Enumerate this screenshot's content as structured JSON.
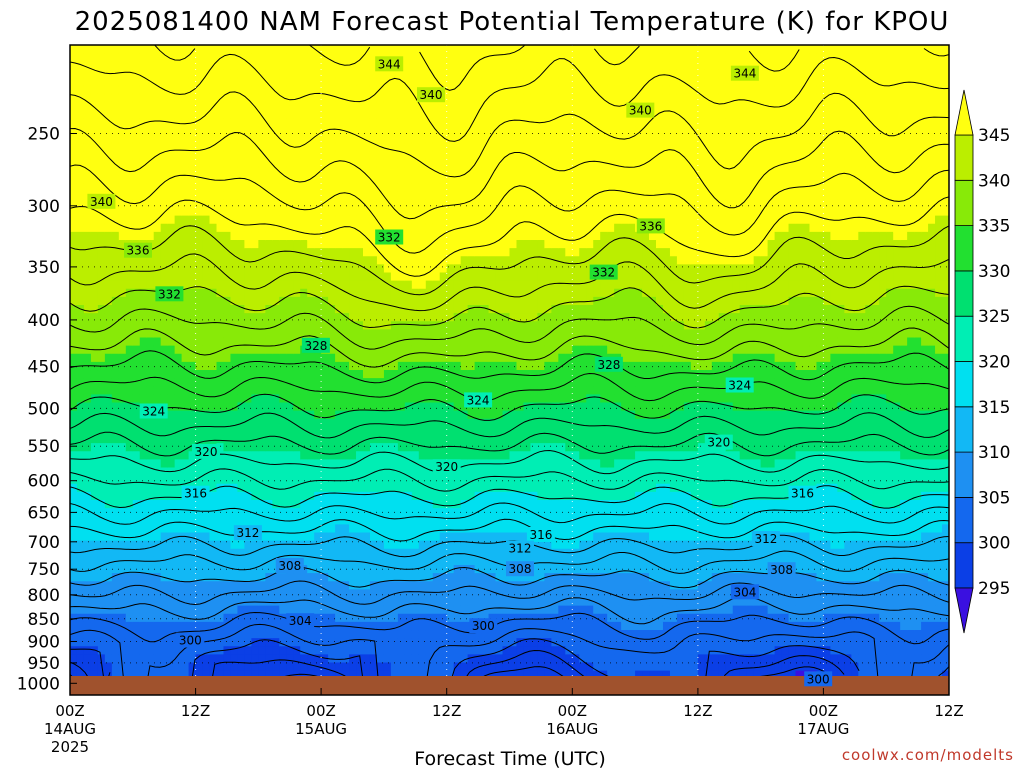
{
  "title": "2025081400 NAM Forecast Potential Temperature (K) for KPOU",
  "credit": "coolwx.com/modelts",
  "chart_data": {
    "type": "heatmap",
    "title": "2025081400 NAM Forecast Potential Temperature (K) for KPOU",
    "xlabel": "Forecast Time (UTC)",
    "ylabel": "",
    "y_axis": {
      "scale": "log-pressure",
      "direction": "inverted",
      "ticks": [
        250,
        300,
        350,
        400,
        450,
        500,
        550,
        600,
        650,
        700,
        750,
        800,
        850,
        900,
        950,
        1000
      ],
      "range": [
        200,
        1030
      ]
    },
    "x_axis": {
      "range_hours": [
        0,
        84
      ],
      "ticks": [
        {
          "hour": 0,
          "line1": "00Z",
          "line2": "14AUG",
          "line3": "2025"
        },
        {
          "hour": 12,
          "line1": "12Z",
          "line2": "",
          "line3": ""
        },
        {
          "hour": 24,
          "line1": "00Z",
          "line2": "15AUG",
          "line3": ""
        },
        {
          "hour": 36,
          "line1": "12Z",
          "line2": "",
          "line3": ""
        },
        {
          "hour": 48,
          "line1": "00Z",
          "line2": "16AUG",
          "line3": ""
        },
        {
          "hour": 60,
          "line1": "12Z",
          "line2": "",
          "line3": ""
        },
        {
          "hour": 72,
          "line1": "00Z",
          "line2": "17AUG",
          "line3": ""
        },
        {
          "hour": 84,
          "line1": "12Z",
          "line2": "",
          "line3": ""
        }
      ]
    },
    "grid": "dotted",
    "colorbar": {
      "levels": [
        295,
        300,
        305,
        310,
        315,
        320,
        325,
        330,
        335,
        340,
        345
      ],
      "colors": [
        "#3a10e0",
        "#0b3fe6",
        "#1468ee",
        "#1e90f2",
        "#12b8f5",
        "#00e0f0",
        "#00eeb4",
        "#00e070",
        "#22e030",
        "#88ea08",
        "#bbee00",
        "#ffff10"
      ],
      "extend": "both"
    },
    "contour_interval_K": 2,
    "contour_labels": [
      {
        "value": "344",
        "hour": 30.5,
        "p": 210
      },
      {
        "value": "344",
        "hour": 64.5,
        "p": 215
      },
      {
        "value": "340",
        "hour": 34.5,
        "p": 227
      },
      {
        "value": "340",
        "hour": 54.5,
        "p": 236
      },
      {
        "value": "340",
        "hour": 3.0,
        "p": 297
      },
      {
        "value": "336",
        "hour": 55.5,
        "p": 316
      },
      {
        "value": "336",
        "hour": 6.5,
        "p": 336
      },
      {
        "value": "332",
        "hour": 30.5,
        "p": 325
      },
      {
        "value": "332",
        "hour": 51.0,
        "p": 355
      },
      {
        "value": "332",
        "hour": 9.5,
        "p": 375
      },
      {
        "value": "328",
        "hour": 23.5,
        "p": 427
      },
      {
        "value": "328",
        "hour": 51.5,
        "p": 448
      },
      {
        "value": "324",
        "hour": 64.0,
        "p": 472
      },
      {
        "value": "324",
        "hour": 39.0,
        "p": 490
      },
      {
        "value": "324",
        "hour": 8.0,
        "p": 504
      },
      {
        "value": "320",
        "hour": 62.0,
        "p": 545
      },
      {
        "value": "320",
        "hour": 13.0,
        "p": 558
      },
      {
        "value": "320",
        "hour": 36.0,
        "p": 580
      },
      {
        "value": "316",
        "hour": 12.0,
        "p": 620
      },
      {
        "value": "316",
        "hour": 70.0,
        "p": 620
      },
      {
        "value": "316",
        "hour": 45.0,
        "p": 688
      },
      {
        "value": "312",
        "hour": 17.0,
        "p": 685
      },
      {
        "value": "312",
        "hour": 66.5,
        "p": 695
      },
      {
        "value": "312",
        "hour": 43.0,
        "p": 712
      },
      {
        "value": "308",
        "hour": 21.0,
        "p": 744
      },
      {
        "value": "308",
        "hour": 68.0,
        "p": 752
      },
      {
        "value": "308",
        "hour": 43.0,
        "p": 750
      },
      {
        "value": "304",
        "hour": 64.5,
        "p": 795
      },
      {
        "value": "304",
        "hour": 22.0,
        "p": 855
      },
      {
        "value": "300",
        "hour": 11.5,
        "p": 898
      },
      {
        "value": "300",
        "hour": 39.5,
        "p": 866
      },
      {
        "value": "300",
        "hour": 71.5,
        "p": 990
      }
    ],
    "terrain": "ground below ~1000 hPa shaded brown"
  }
}
